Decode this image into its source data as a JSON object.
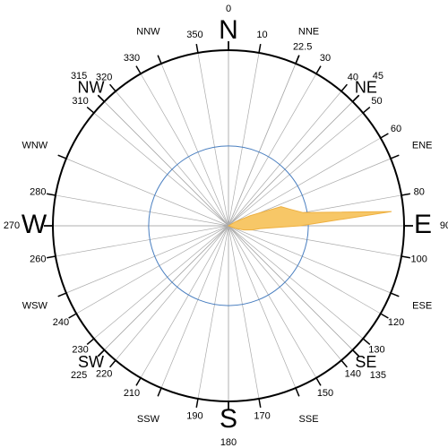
{
  "chart_data": {
    "type": "polar_area",
    "color": "#f7c767",
    "edge_color": "#eeb040",
    "rlim": [
      0,
      22
    ],
    "rgrid": [
      10
    ],
    "angle_ticks": [
      0,
      10,
      22.5,
      30,
      40,
      45,
      50,
      60,
      80,
      90,
      100,
      120,
      130,
      135,
      140,
      150,
      170,
      180,
      190,
      210,
      220,
      225,
      230,
      240,
      260,
      270,
      280,
      310,
      315,
      320,
      330,
      350
    ],
    "compass_ticks": [
      {
        "value": 0,
        "label": "N"
      },
      {
        "value": 22.5,
        "label": "NNE"
      },
      {
        "value": 45,
        "label": "NE"
      },
      {
        "value": 67.5,
        "label": "ENE"
      },
      {
        "value": 90,
        "label": "E"
      },
      {
        "value": 112.5,
        "label": "ESE"
      },
      {
        "value": 135,
        "label": "SE"
      },
      {
        "value": 157.5,
        "label": "SSE"
      },
      {
        "value": 180,
        "label": "S"
      },
      {
        "value": 202.5,
        "label": "SSW"
      },
      {
        "value": 225,
        "label": "SW"
      },
      {
        "value": 247.5,
        "label": "WSW"
      },
      {
        "value": 270,
        "label": "W"
      },
      {
        "value": 292.5,
        "label": "WNW"
      },
      {
        "value": 315,
        "label": "NW"
      },
      {
        "value": 337.5,
        "label": "NNW"
      }
    ],
    "directions": [
      55,
      60,
      65,
      70,
      75,
      80,
      85,
      90,
      95,
      100,
      105,
      110,
      115
    ],
    "values": [
      0,
      1,
      3,
      7,
      8,
      9.5,
      20.5,
      9,
      4,
      3,
      2,
      1,
      0
    ]
  }
}
